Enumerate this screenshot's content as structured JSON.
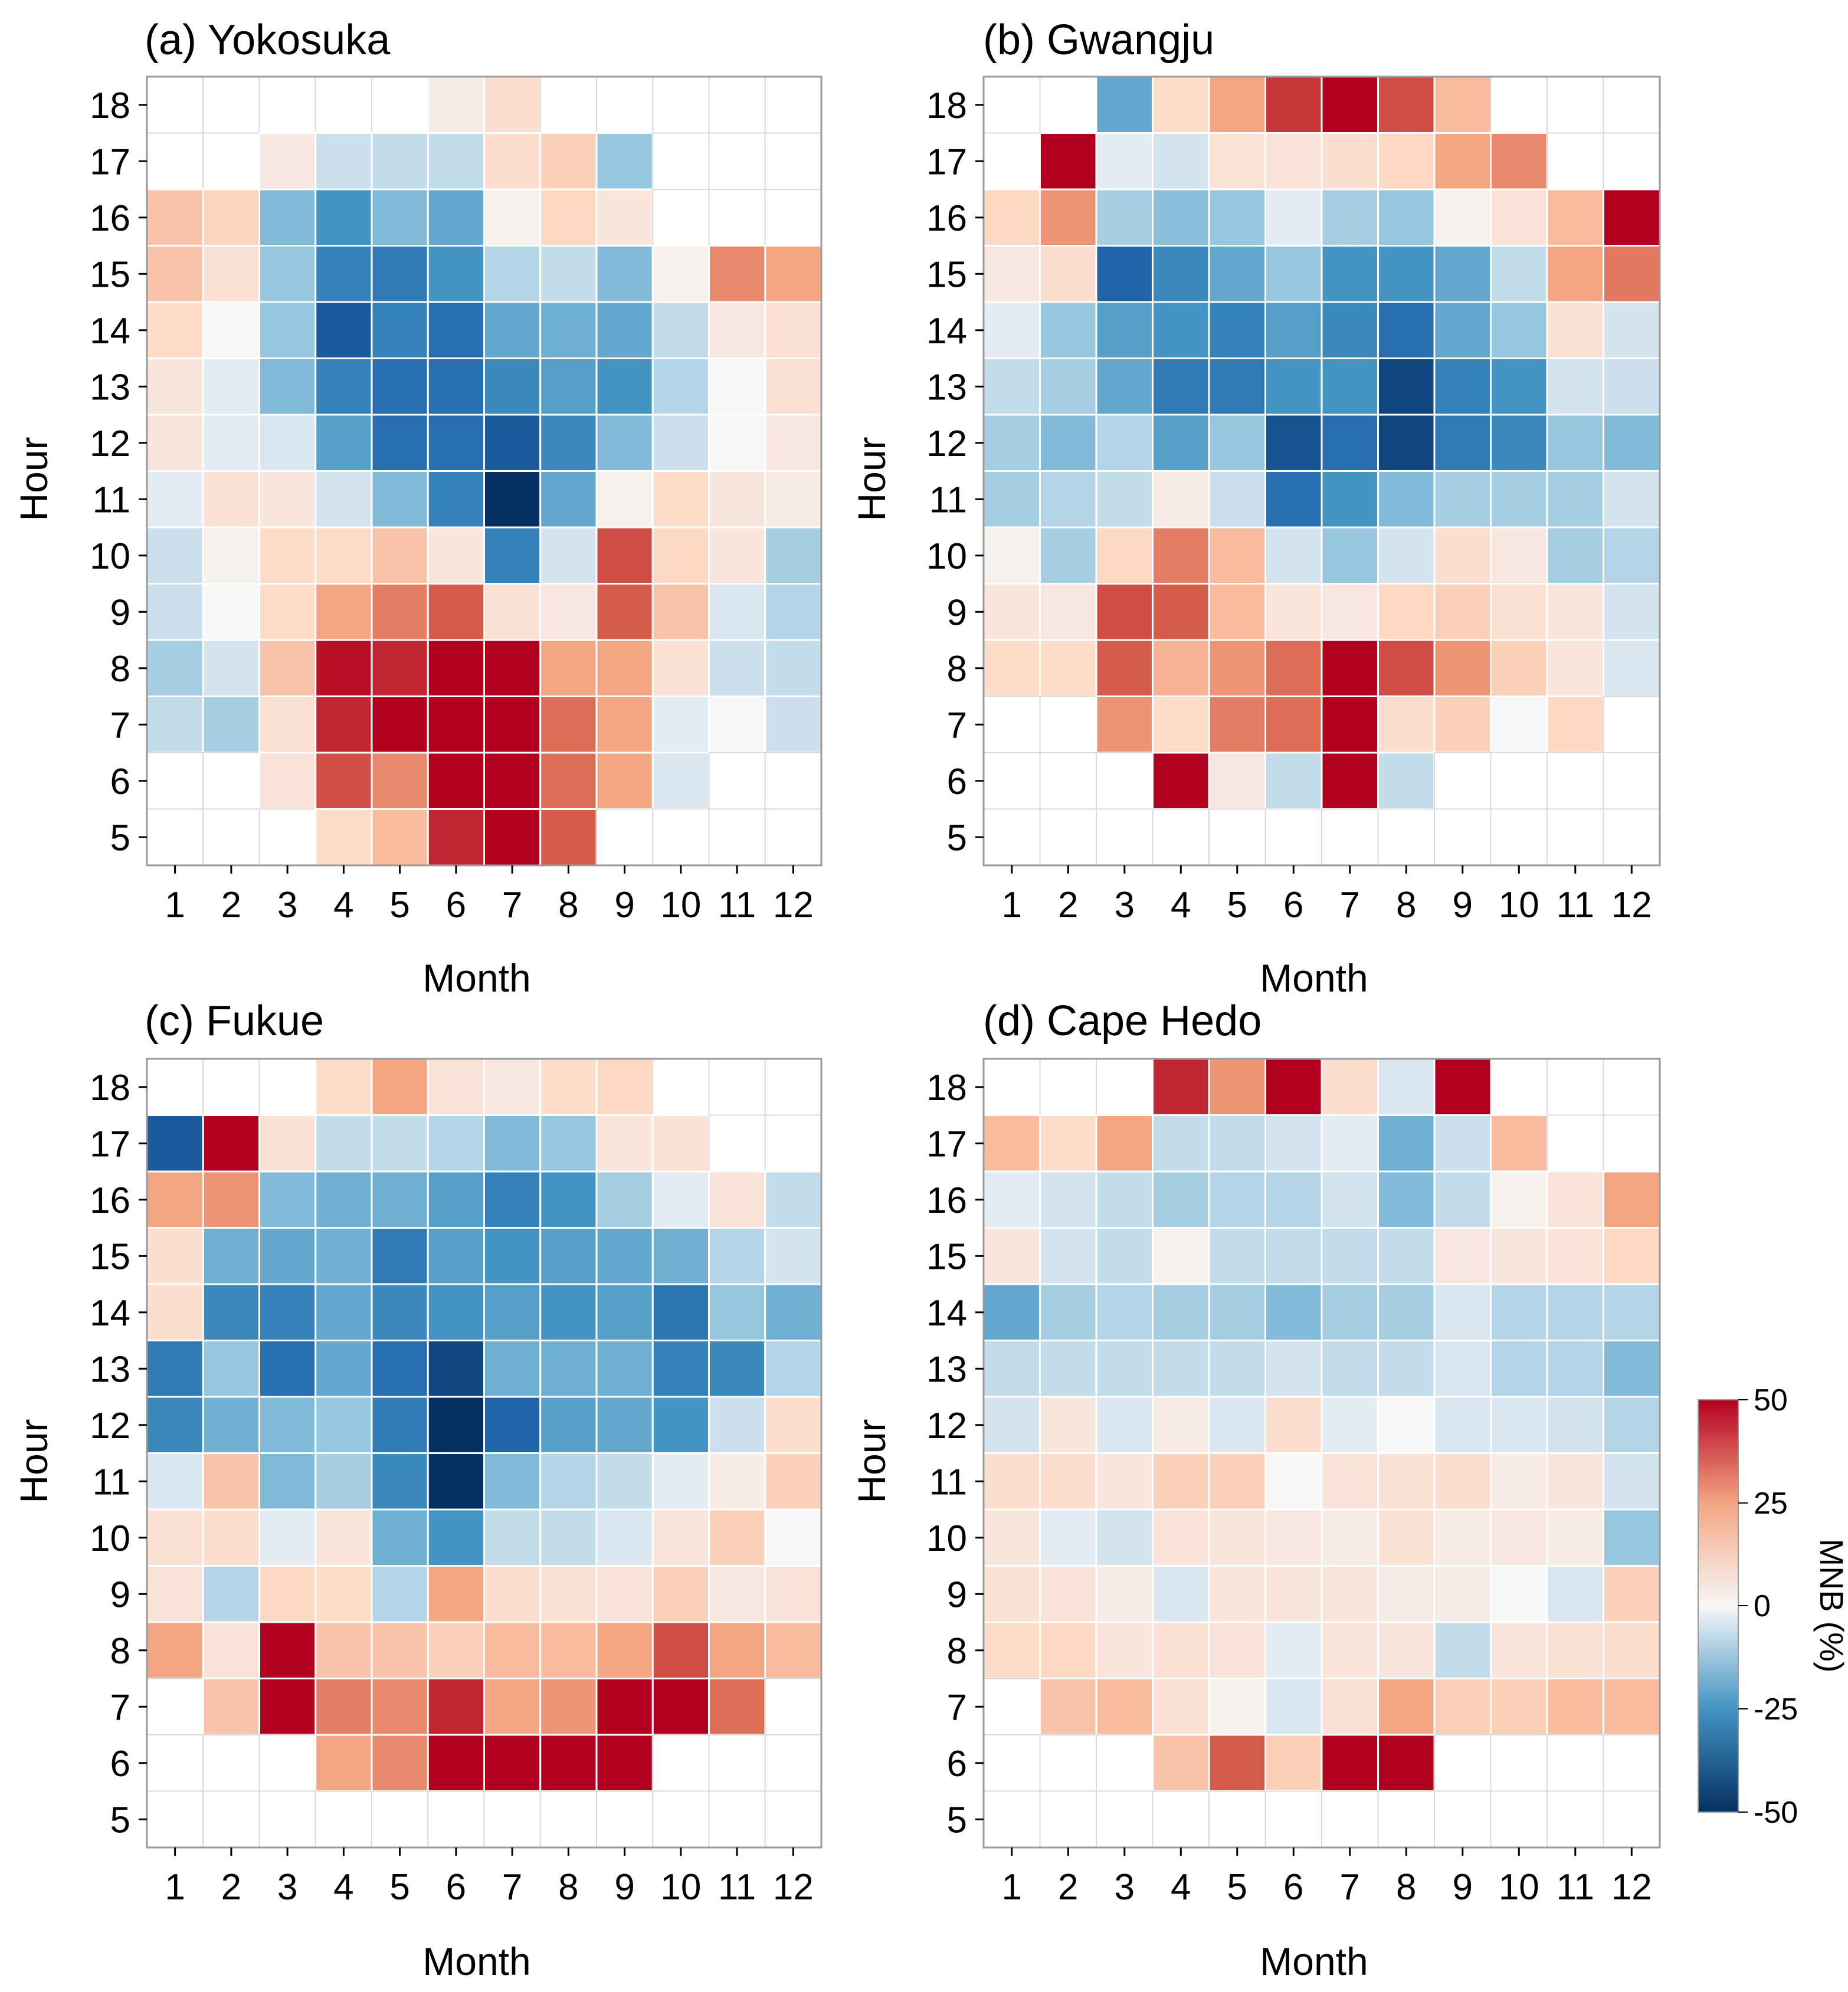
{
  "chart_data": {
    "type": "heatmap",
    "value_scale": [
      -50,
      50
    ],
    "colors": {
      "negative": "#053061",
      "negative_mid": "#4393c3",
      "neutral": "#f7f7f7",
      "positive_mid": "#f4a582",
      "positive": "#b2001f",
      "grid": "#d9d9d9",
      "frame": "#9a9a9a"
    },
    "colorbar": {
      "label": "MNB (%)",
      "ticks": [
        "50",
        "25",
        "0",
        "-25",
        "-50"
      ]
    },
    "panels": [
      {
        "title": "(a) Yokosuka",
        "xlabel": "Month",
        "ylabel": "Hour",
        "x_ticks": [
          "1",
          "2",
          "3",
          "4",
          "5",
          "6",
          "7",
          "8",
          "9",
          "10",
          "11",
          "12"
        ],
        "y_ticks": [
          "18",
          "17",
          "16",
          "15",
          "14",
          "13",
          "12",
          "11",
          "10",
          "9",
          "8",
          "7",
          "6",
          "5"
        ],
        "values": [
          [
            null,
            null,
            null,
            null,
            null,
            2,
            10,
            null,
            null,
            null,
            null,
            null
          ],
          [
            null,
            null,
            3,
            -5,
            -6,
            -6,
            10,
            15,
            -12,
            null,
            null,
            null
          ],
          [
            18,
            14,
            -15,
            -25,
            -15,
            -20,
            1,
            13,
            5,
            null,
            null,
            null
          ],
          [
            18,
            8,
            -12,
            -30,
            -32,
            -25,
            -8,
            -6,
            -15,
            1,
            30,
            25
          ],
          [
            12,
            0,
            -12,
            -40,
            -30,
            -35,
            -20,
            -18,
            -20,
            -6,
            3,
            8
          ],
          [
            4,
            -2,
            -15,
            -30,
            -35,
            -35,
            -28,
            -22,
            -25,
            -8,
            0,
            8
          ],
          [
            4,
            -2,
            -3,
            -22,
            -35,
            -35,
            -40,
            -28,
            -15,
            -5,
            0,
            3
          ],
          [
            -2,
            8,
            5,
            -4,
            -15,
            -30,
            -50,
            -20,
            1,
            12,
            4,
            2
          ],
          [
            -5,
            1,
            12,
            12,
            18,
            4,
            -30,
            -4,
            40,
            13,
            5,
            -10
          ],
          [
            -5,
            0,
            12,
            25,
            32,
            38,
            8,
            3,
            38,
            18,
            -3,
            -8
          ],
          [
            -10,
            -4,
            18,
            48,
            45,
            50,
            50,
            25,
            25,
            8,
            -5,
            -6
          ],
          [
            -6,
            -10,
            8,
            45,
            50,
            50,
            50,
            35,
            25,
            -2,
            0,
            -5
          ],
          [
            null,
            null,
            6,
            40,
            30,
            50,
            50,
            35,
            25,
            -3,
            null,
            null
          ],
          [
            null,
            null,
            null,
            12,
            20,
            45,
            50,
            38,
            null,
            null,
            null,
            null
          ]
        ]
      },
      {
        "title": "(b) Gwangju",
        "xlabel": "Month",
        "ylabel": "Hour",
        "x_ticks": [
          "1",
          "2",
          "3",
          "4",
          "5",
          "6",
          "7",
          "8",
          "9",
          "10",
          "11",
          "12"
        ],
        "y_ticks": [
          "18",
          "17",
          "16",
          "15",
          "14",
          "13",
          "12",
          "11",
          "10",
          "9",
          "8",
          "7",
          "6",
          "5"
        ],
        "values": [
          [
            null,
            null,
            -20,
            12,
            25,
            43,
            50,
            40,
            20,
            null,
            null,
            null
          ],
          [
            null,
            50,
            -2,
            -4,
            7,
            6,
            10,
            13,
            25,
            30,
            null,
            null
          ],
          [
            13,
            28,
            -10,
            -14,
            -12,
            -2,
            -10,
            -12,
            1,
            6,
            20,
            50
          ],
          [
            3,
            10,
            -38,
            -28,
            -20,
            -12,
            -25,
            -25,
            -20,
            -6,
            25,
            33
          ],
          [
            -2,
            -12,
            -22,
            -25,
            -30,
            -22,
            -28,
            -35,
            -20,
            -12,
            8,
            -4
          ],
          [
            -6,
            -10,
            -20,
            -32,
            -32,
            -25,
            -25,
            -45,
            -30,
            -25,
            -4,
            -5
          ],
          [
            -10,
            -15,
            -8,
            -22,
            -12,
            -42,
            -35,
            -45,
            -32,
            -28,
            -12,
            -15
          ],
          [
            -10,
            -8,
            -6,
            2,
            -5,
            -35,
            -25,
            -15,
            -10,
            -10,
            -10,
            -4
          ],
          [
            1,
            -10,
            13,
            32,
            20,
            -4,
            -12,
            -4,
            10,
            3,
            -10,
            -8
          ],
          [
            4,
            3,
            40,
            38,
            20,
            5,
            3,
            13,
            15,
            8,
            5,
            -4
          ],
          [
            12,
            12,
            38,
            22,
            28,
            35,
            50,
            40,
            28,
            15,
            5,
            -3
          ],
          [
            null,
            null,
            28,
            12,
            32,
            35,
            50,
            10,
            15,
            0,
            13,
            null
          ],
          [
            null,
            null,
            null,
            50,
            3,
            -6,
            50,
            -6,
            null,
            null,
            null,
            null
          ],
          [
            null,
            null,
            null,
            null,
            null,
            null,
            null,
            null,
            null,
            null,
            null,
            null
          ]
        ]
      },
      {
        "title": "(c) Fukue",
        "xlabel": "Month",
        "ylabel": "Hour",
        "x_ticks": [
          "1",
          "2",
          "3",
          "4",
          "5",
          "6",
          "7",
          "8",
          "9",
          "10",
          "11",
          "12"
        ],
        "y_ticks": [
          "18",
          "17",
          "16",
          "15",
          "14",
          "13",
          "12",
          "11",
          "10",
          "9",
          "8",
          "7",
          "6",
          "5"
        ],
        "values": [
          [
            null,
            null,
            null,
            12,
            25,
            6,
            3,
            12,
            13,
            null,
            null,
            null
          ],
          [
            -40,
            50,
            8,
            -6,
            -6,
            -8,
            -15,
            -12,
            5,
            8,
            null,
            null
          ],
          [
            25,
            28,
            -15,
            -18,
            -18,
            -22,
            -30,
            -25,
            -10,
            -2,
            6,
            -6
          ],
          [
            10,
            -18,
            -20,
            -18,
            -32,
            -22,
            -25,
            -22,
            -20,
            -18,
            -8,
            -4
          ],
          [
            10,
            -28,
            -30,
            -20,
            -28,
            -25,
            -22,
            -25,
            -22,
            -33,
            -12,
            -18
          ],
          [
            -32,
            -12,
            -35,
            -20,
            -35,
            -45,
            -18,
            -18,
            -18,
            -30,
            -28,
            -8
          ],
          [
            -28,
            -18,
            -15,
            -12,
            -32,
            -50,
            -38,
            -22,
            -20,
            -25,
            -5,
            10
          ],
          [
            -3,
            18,
            -15,
            -10,
            -28,
            -50,
            -15,
            -8,
            -6,
            -2,
            2,
            15
          ],
          [
            8,
            10,
            -2,
            5,
            -18,
            -25,
            -6,
            -6,
            -3,
            5,
            15,
            0
          ],
          [
            6,
            -8,
            13,
            12,
            -8,
            25,
            10,
            8,
            6,
            15,
            3,
            6
          ],
          [
            25,
            6,
            50,
            18,
            18,
            15,
            20,
            20,
            25,
            40,
            25,
            20
          ],
          [
            null,
            18,
            50,
            32,
            30,
            45,
            25,
            28,
            50,
            50,
            35,
            null
          ],
          [
            null,
            null,
            null,
            25,
            30,
            50,
            50,
            50,
            50,
            null,
            null,
            null
          ],
          [
            null,
            null,
            null,
            null,
            null,
            null,
            null,
            null,
            null,
            null,
            null,
            null
          ]
        ]
      },
      {
        "title": "(d) Cape Hedo",
        "xlabel": "Month",
        "ylabel": "Hour",
        "x_ticks": [
          "1",
          "2",
          "3",
          "4",
          "5",
          "6",
          "7",
          "8",
          "9",
          "10",
          "11",
          "12"
        ],
        "y_ticks": [
          "18",
          "17",
          "16",
          "15",
          "14",
          "13",
          "12",
          "11",
          "10",
          "9",
          "8",
          "7",
          "6",
          "5"
        ],
        "values": [
          [
            null,
            null,
            null,
            45,
            28,
            50,
            10,
            -3,
            50,
            null,
            null,
            null
          ],
          [
            20,
            12,
            25,
            -6,
            -6,
            -4,
            -2,
            -18,
            -5,
            20,
            null,
            null
          ],
          [
            -2,
            -4,
            -6,
            -10,
            -8,
            -8,
            -4,
            -15,
            -6,
            1,
            6,
            25
          ],
          [
            4,
            -4,
            -6,
            1,
            -6,
            -6,
            -6,
            -6,
            3,
            4,
            6,
            13
          ],
          [
            -20,
            -10,
            -8,
            -10,
            -10,
            -15,
            -10,
            -10,
            -3,
            -8,
            -8,
            -8
          ],
          [
            -6,
            -6,
            -6,
            -6,
            -6,
            -4,
            -6,
            -6,
            -3,
            -8,
            -8,
            -15
          ],
          [
            -4,
            4,
            -3,
            2,
            -3,
            10,
            -2,
            0,
            -3,
            -3,
            -4,
            -8
          ],
          [
            10,
            10,
            4,
            15,
            15,
            0,
            6,
            8,
            10,
            2,
            4,
            -4
          ],
          [
            4,
            -2,
            -4,
            6,
            4,
            3,
            2,
            8,
            2,
            3,
            2,
            -12
          ],
          [
            8,
            6,
            2,
            -3,
            5,
            4,
            4,
            2,
            2,
            0,
            -3,
            15
          ],
          [
            12,
            13,
            5,
            8,
            6,
            -2,
            5,
            4,
            -6,
            5,
            8,
            10
          ],
          [
            null,
            18,
            20,
            8,
            1,
            -3,
            8,
            25,
            15,
            15,
            20,
            20
          ],
          [
            null,
            null,
            null,
            18,
            38,
            15,
            50,
            50,
            null,
            null,
            null,
            null
          ],
          [
            null,
            null,
            null,
            null,
            null,
            null,
            null,
            null,
            null,
            null,
            null,
            null
          ]
        ]
      }
    ]
  }
}
